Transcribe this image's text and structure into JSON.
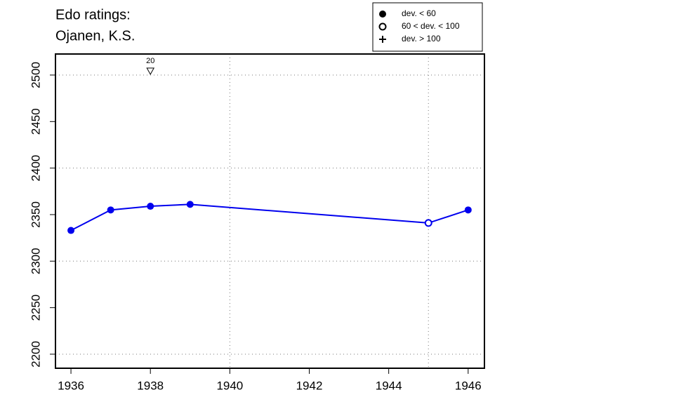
{
  "chart_data": {
    "type": "line",
    "title": [
      "Edo ratings:",
      "Ojanen, K.S."
    ],
    "x": [
      1936,
      1937,
      1938,
      1939,
      1945,
      1946
    ],
    "series": [
      {
        "color": "#0000ee",
        "values": [
          2333,
          2355,
          2359,
          2361,
          2341,
          2355
        ],
        "marker_classes": [
          0,
          0,
          0,
          0,
          1,
          0
        ]
      }
    ],
    "legend": [
      "dev. < 60",
      "60 < dev. < 100",
      "dev. > 100"
    ],
    "annotations": [
      {
        "text": "20",
        "x": 1938
      }
    ],
    "xlim": [
      1935.61,
      1946.41
    ],
    "ylim": [
      2184.9,
      2522.6
    ],
    "xticks": [
      1936,
      1938,
      1940,
      1942,
      1944,
      1946
    ],
    "yticks": [
      2200,
      2250,
      2300,
      2350,
      2400,
      2450,
      2500
    ],
    "xgrid": [
      1940,
      1945
    ],
    "ygrid": [
      2200,
      2300,
      2400,
      2500
    ]
  }
}
